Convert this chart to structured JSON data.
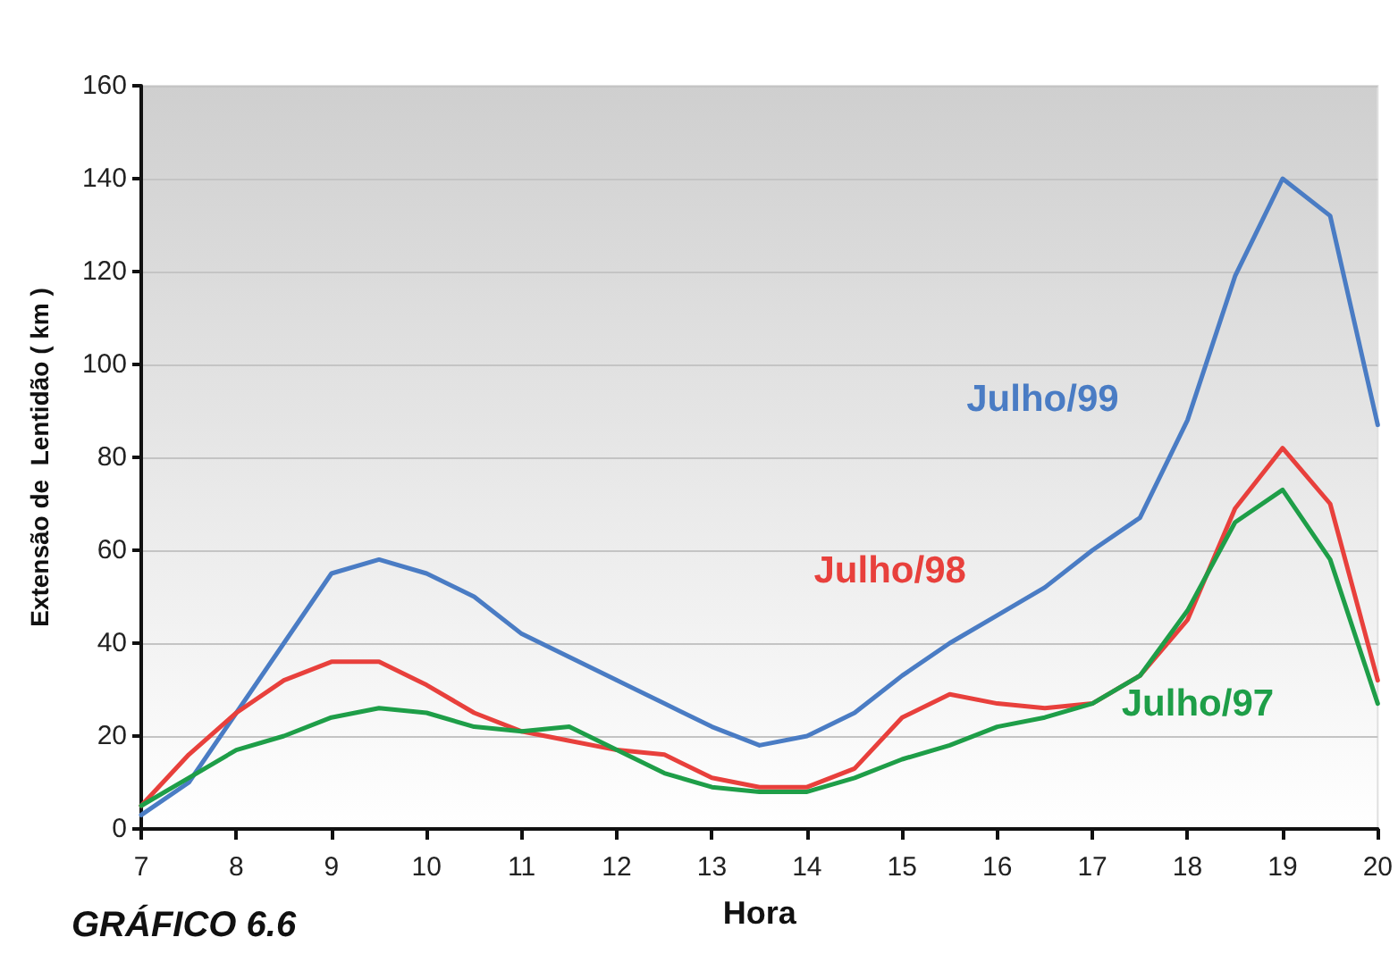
{
  "chart_data": {
    "type": "line",
    "xlabel": "Hora",
    "ylabel": "Extensão de  Lentidão ( km )",
    "annotations": [
      "GRÁFICO 6.6"
    ],
    "x": [
      7,
      7.5,
      8,
      8.5,
      9,
      9.5,
      10,
      10.5,
      11,
      11.5,
      12,
      12.5,
      13,
      13.5,
      14,
      14.5,
      15,
      15.5,
      16,
      16.5,
      17,
      17.5,
      18,
      18.5,
      19,
      19.5,
      20
    ],
    "series": [
      {
        "name": "Julho/99",
        "color": "#4a7cc4",
        "values": [
          3,
          10,
          25,
          40,
          55,
          58,
          55,
          50,
          42,
          37,
          32,
          27,
          22,
          18,
          20,
          25,
          33,
          40,
          46,
          52,
          60,
          67,
          88,
          119,
          140,
          132,
          87
        ]
      },
      {
        "name": "Julho/98",
        "color": "#e8403c",
        "values": [
          5,
          16,
          25,
          32,
          36,
          36,
          31,
          25,
          21,
          19,
          17,
          16,
          11,
          9,
          9,
          13,
          24,
          29,
          27,
          26,
          27,
          33,
          45,
          69,
          82,
          70,
          32
        ]
      },
      {
        "name": "Julho/97",
        "color": "#1e9e48",
        "values": [
          5,
          11,
          17,
          20,
          24,
          26,
          25,
          22,
          21,
          22,
          17,
          12,
          9,
          8,
          8,
          11,
          15,
          18,
          22,
          24,
          27,
          33,
          47,
          66,
          73,
          58,
          27
        ]
      }
    ],
    "xlim": [
      7,
      20
    ],
    "xticks": [
      7,
      8,
      9,
      10,
      11,
      12,
      13,
      14,
      15,
      16,
      17,
      18,
      19,
      20
    ],
    "ylim": [
      0,
      160
    ],
    "yticks": [
      0,
      20,
      40,
      60,
      80,
      100,
      120,
      140,
      160
    ],
    "grid": "y",
    "legend": false,
    "marker": "none",
    "line_style": "solid"
  }
}
